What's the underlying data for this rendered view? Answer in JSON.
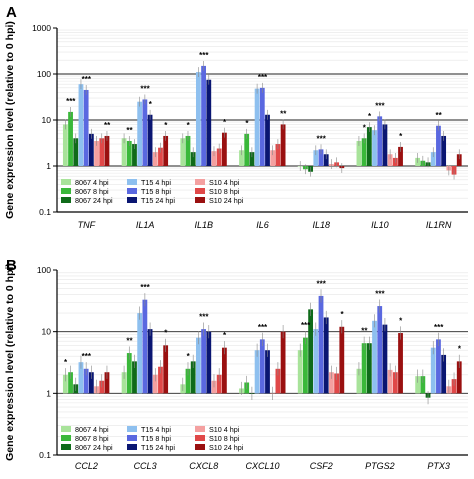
{
  "y_axis_label": "Gene expression level (relative to 0 hpi)",
  "colors": [
    "#a8e39a",
    "#3ab83a",
    "#0f6b1a",
    "#8ec0ef",
    "#5a68e0",
    "#0a1672",
    "#f4a0a0",
    "#e04848",
    "#9a1010"
  ],
  "chart_data": [
    {
      "panel": "A",
      "type": "bar",
      "yscale": "log",
      "ylim": [
        0.1,
        1000
      ],
      "yticks": [
        "0.1",
        "1",
        "10",
        "100",
        "1000"
      ],
      "reference_lines": [
        1,
        10,
        100
      ],
      "grid": true,
      "legend_position": "bottom-left",
      "categories": [
        "TNF",
        "IL1A",
        "IL1B",
        "IL6",
        "IL18",
        "IL10",
        "IL1RN"
      ],
      "series": [
        {
          "name": "8067 4 hpi",
          "values": [
            8.0,
            4.0,
            4.0,
            2.2,
            1.0,
            3.5,
            1.5
          ]
        },
        {
          "name": "8067 8 hpi",
          "values": [
            15.0,
            3.5,
            4.5,
            5.0,
            0.85,
            4.0,
            1.3
          ]
        },
        {
          "name": "8067 24 hpi",
          "values": [
            4.0,
            3.0,
            2.0,
            2.0,
            0.75,
            7.0,
            1.2
          ]
        },
        {
          "name": "T15 4 hpi",
          "values": [
            60.0,
            25.0,
            110.0,
            48.0,
            2.2,
            6.0,
            2.0
          ]
        },
        {
          "name": "T15 8 hpi",
          "values": [
            45.0,
            28.0,
            150.0,
            50.0,
            2.3,
            12.0,
            7.5
          ]
        },
        {
          "name": "T15 24 hpi",
          "values": [
            5.0,
            13.0,
            75.0,
            13.0,
            1.8,
            8.0,
            4.5
          ]
        },
        {
          "name": "S10 4 hpi",
          "values": [
            3.5,
            2.0,
            2.1,
            2.2,
            1.1,
            1.8,
            0.8
          ]
        },
        {
          "name": "S10 8 hpi",
          "values": [
            4.0,
            2.5,
            2.4,
            3.0,
            1.2,
            1.5,
            0.65
          ]
        },
        {
          "name": "S10 24 hpi",
          "values": [
            4.5,
            4.5,
            5.3,
            8.0,
            0.9,
            2.6,
            1.8
          ]
        }
      ],
      "annotations": [
        {
          "category": "TNF",
          "series": 1,
          "text": "***"
        },
        {
          "category": "TNF",
          "series": 4,
          "text": "***"
        },
        {
          "category": "TNF",
          "series": 8,
          "text": "**"
        },
        {
          "category": "IL1A",
          "series": 1,
          "text": "**"
        },
        {
          "category": "IL1A",
          "series": 4,
          "text": "***"
        },
        {
          "category": "IL1A",
          "series": 5,
          "text": "*"
        },
        {
          "category": "IL1A",
          "series": 8,
          "text": "*"
        },
        {
          "category": "IL1B",
          "series": 1,
          "text": "*"
        },
        {
          "category": "IL1B",
          "series": 4,
          "text": "***"
        },
        {
          "category": "IL1B",
          "series": 8,
          "text": "*"
        },
        {
          "category": "IL6",
          "series": 1,
          "text": "*"
        },
        {
          "category": "IL6",
          "series": 4,
          "text": "***"
        },
        {
          "category": "IL6",
          "series": 8,
          "text": "**"
        },
        {
          "category": "IL18",
          "series": 4,
          "text": "***"
        },
        {
          "category": "IL10",
          "series": 1,
          "text": "*"
        },
        {
          "category": "IL10",
          "series": 2,
          "text": "*"
        },
        {
          "category": "IL10",
          "series": 4,
          "text": "***"
        },
        {
          "category": "IL10",
          "series": 8,
          "text": "*"
        },
        {
          "category": "IL1RN",
          "series": 4,
          "text": "**"
        }
      ]
    },
    {
      "panel": "B",
      "type": "bar",
      "yscale": "log",
      "ylim": [
        0.1,
        100
      ],
      "yticks": [
        "0.1",
        "1",
        "10",
        "100"
      ],
      "reference_lines": [
        1,
        10
      ],
      "grid": true,
      "legend_position": "bottom-left",
      "categories": [
        "CCL2",
        "CCL3",
        "CXCL8",
        "CXCL10",
        "CSF2",
        "PTGS2",
        "PTX3"
      ],
      "series": [
        {
          "name": "8067 4 hpi",
          "values": [
            2.0,
            2.2,
            1.4,
            1.2,
            5.0,
            2.5,
            1.9
          ]
        },
        {
          "name": "8067 8 hpi",
          "values": [
            2.2,
            4.5,
            2.5,
            1.5,
            8.0,
            6.5,
            1.9
          ]
        },
        {
          "name": "8067 24 hpi",
          "values": [
            1.4,
            3.3,
            3.3,
            1.0,
            23.0,
            6.5,
            0.85
          ]
        },
        {
          "name": "T15 4 hpi",
          "values": [
            3.2,
            20.0,
            8.0,
            5.0,
            11.0,
            15.0,
            5.5
          ]
        },
        {
          "name": "T15 8 hpi",
          "values": [
            2.5,
            33.0,
            11.0,
            7.5,
            38.0,
            26.0,
            7.5
          ]
        },
        {
          "name": "T15 24 hpi",
          "values": [
            2.2,
            11.0,
            10.0,
            5.0,
            17.0,
            13.0,
            4.2
          ]
        },
        {
          "name": "S10 4 hpi",
          "values": [
            1.3,
            2.0,
            1.6,
            1.0,
            2.2,
            2.4,
            1.3
          ]
        },
        {
          "name": "S10 8 hpi",
          "values": [
            1.6,
            2.7,
            2.0,
            2.5,
            2.1,
            2.2,
            1.7
          ]
        },
        {
          "name": "S10 24 hpi",
          "values": [
            2.2,
            6.0,
            5.5,
            10.0,
            12.0,
            9.5,
            3.3
          ]
        }
      ],
      "annotations": [
        {
          "category": "CCL2",
          "series": 0,
          "text": "*"
        },
        {
          "category": "CCL2",
          "series": 4,
          "text": "***"
        },
        {
          "category": "CCL3",
          "series": 1,
          "text": "**"
        },
        {
          "category": "CCL3",
          "series": 4,
          "text": "***"
        },
        {
          "category": "CCL3",
          "series": 8,
          "text": "*"
        },
        {
          "category": "CXCL8",
          "series": 1,
          "text": "*"
        },
        {
          "category": "CXCL8",
          "series": 4,
          "text": "***"
        },
        {
          "category": "CXCL8",
          "series": 8,
          "text": "*"
        },
        {
          "category": "CXCL10",
          "series": 4,
          "text": "***"
        },
        {
          "category": "CSF2",
          "series": 1,
          "text": "***"
        },
        {
          "category": "CSF2",
          "series": 4,
          "text": "***"
        },
        {
          "category": "CSF2",
          "series": 8,
          "text": "*"
        },
        {
          "category": "PTGS2",
          "series": 1,
          "text": "**"
        },
        {
          "category": "PTGS2",
          "series": 4,
          "text": "***"
        },
        {
          "category": "PTGS2",
          "series": 8,
          "text": "*"
        },
        {
          "category": "PTX3",
          "series": 4,
          "text": "***"
        },
        {
          "category": "PTX3",
          "series": 8,
          "text": "*"
        }
      ]
    }
  ]
}
